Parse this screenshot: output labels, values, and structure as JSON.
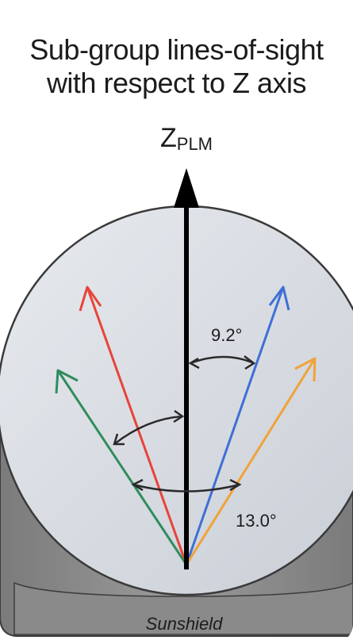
{
  "title": {
    "line1": "Sub-group lines-of-sight",
    "line2": "with respect to Z axis"
  },
  "axis": {
    "main": "Z",
    "sub": "PLM"
  },
  "angles": {
    "inner": "9.2°",
    "outer": "13.0°"
  },
  "sunshield_label": "Sunshield",
  "colors": {
    "red": "#e8433a",
    "blue": "#3f6fd6",
    "green": "#2f8c5e",
    "orange": "#f0a23a",
    "axis": "#000000",
    "dome": "#d7dbe1",
    "sunshield": "#8e8e8e"
  }
}
